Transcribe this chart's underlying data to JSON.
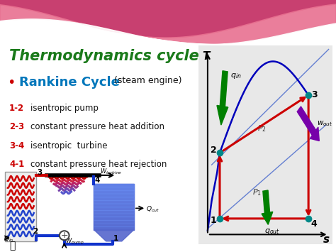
{
  "title": "Thermodynamics cycle",
  "subtitle_bullet": "•",
  "subtitle_main": "Rankine Cycle",
  "subtitle_sub": " (steam engine)",
  "steps": [
    {
      "num": "1-2",
      "desc": "isentropic pump"
    },
    {
      "num": "2-3",
      "desc": "constant pressure heat addition"
    },
    {
      "num": "3-4",
      "desc": "isentropic  turbine"
    },
    {
      "num": "4-1",
      "desc": "constant pressure heat rejection"
    }
  ],
  "bg_color": "#ffffff",
  "wave_color1": "#e87090",
  "wave_color2": "#f0a0b8",
  "wave_color3": "#f8d0dc",
  "title_color": "#1a7a1a",
  "subtitle_color": "#0077bb",
  "bullet_color": "#cc0000",
  "subtitle_black": "#111111",
  "step_num_color": "#cc0000",
  "step_desc_color": "#111111",
  "point_color": "#008888",
  "red_line_color": "#cc0000",
  "blue_curve_color": "#0000cc",
  "arrow_green_color": "#008000",
  "arrow_purple_color": "#7700aa",
  "axis_color": "#333333",
  "ts_bg": "#e8e8e8"
}
